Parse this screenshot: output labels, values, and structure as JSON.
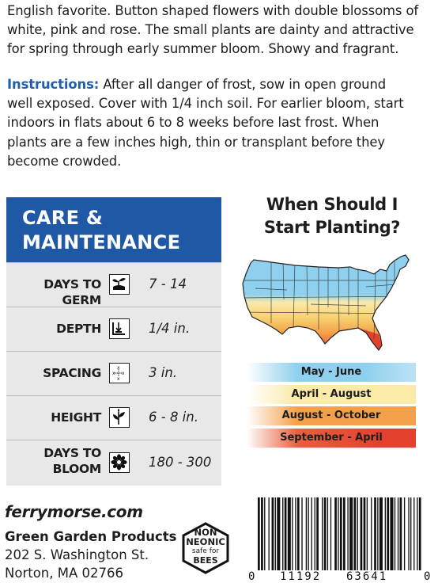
{
  "description": {
    "line1": "English favorite. Button shaped flowers with double blossoms of",
    "line2": "white, pink and rose. The small plants are dainty and attractive",
    "line3": "for spring through early summer bloom. Showy and fragrant."
  },
  "instructions": {
    "label": "Instructions:",
    "line1": " After all danger of frost, sow in open ground",
    "line2": "well exposed. Cover with 1/4 inch soil. For earlier bloom, start",
    "line3": "indoors in flats about 6 to 8 weeks before last frost. When",
    "line4": "plants are a few inches high, thin or transplant before they",
    "line5": "become crowded."
  },
  "care": {
    "title_line1": "CARE &",
    "title_line2": "MAINTENANCE",
    "rows": [
      {
        "label_line1": "DAYS TO GERM",
        "label_line2": "",
        "value": "7 - 14",
        "icon": "sprout-icon"
      },
      {
        "label_line1": "DEPTH",
        "label_line2": "",
        "value": "1/4 in.",
        "icon": "depth-icon"
      },
      {
        "label_line1": "SPACING",
        "label_line2": "",
        "value": "3 in.",
        "icon": "spacing-icon"
      },
      {
        "label_line1": "HEIGHT",
        "label_line2": "",
        "value": "6 - 8 in.",
        "icon": "plant-height-icon"
      },
      {
        "label_line1": "DAYS TO",
        "label_line2": "BLOOM",
        "value": "180 - 300",
        "icon": "flower-icon"
      }
    ]
  },
  "planting": {
    "title_line1": "When Should I",
    "title_line2": "Start Planting?",
    "legend": [
      {
        "label": "May - June",
        "color": "#8fd0ee"
      },
      {
        "label": "April - August",
        "color": "#fbeaa8"
      },
      {
        "label": "August - October",
        "color": "#f4a04a"
      },
      {
        "label": "September - April",
        "color": "#e4402e"
      }
    ]
  },
  "footer": {
    "website": "ferrymorse.com",
    "company": "Green Garden Products",
    "street": "202 S. Washington St.",
    "city": "Norton, MA 02766",
    "badge": {
      "line1": "NON",
      "line2": "NEONIC",
      "line3": "safe for",
      "line4": "BEES"
    },
    "barcode": {
      "left": "0",
      "group1": "11192",
      "group2": "63641",
      "right": "0"
    }
  }
}
